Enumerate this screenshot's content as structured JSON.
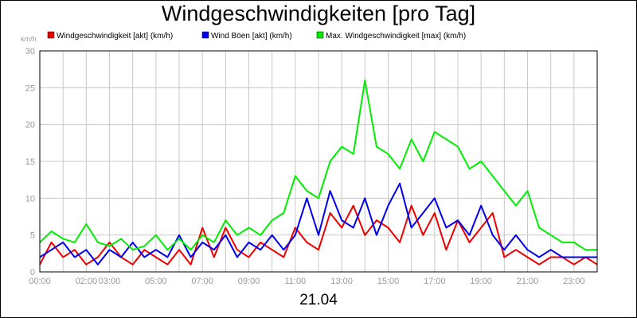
{
  "title": "Windgeschwindigkeiten [pro Tag]",
  "date_label": "21.04",
  "chart_data": {
    "type": "line",
    "title": "Windgeschwindigkeiten [pro Tag]",
    "ylabel": "km/h",
    "xlabel": "21.04",
    "ylim": [
      0,
      30
    ],
    "y_ticks": [
      0,
      5,
      10,
      15,
      20,
      25,
      30
    ],
    "x_ticks": [
      "00:00",
      "02:00",
      "03:00",
      "05:00",
      "07:00",
      "09:00",
      "11:00",
      "13:00",
      "15:00",
      "17:00",
      "19:00",
      "21:00",
      "23:00"
    ],
    "grid": true,
    "legend_position": "top",
    "series": [
      {
        "name": "Windgeschwindigkeit [akt] (km/h)",
        "color": "#ee0000",
        "points": [
          [
            0,
            1
          ],
          [
            0.5,
            4
          ],
          [
            1,
            2
          ],
          [
            1.5,
            3
          ],
          [
            2,
            1
          ],
          [
            2.5,
            2
          ],
          [
            3,
            4
          ],
          [
            3.5,
            2
          ],
          [
            4,
            1
          ],
          [
            4.5,
            3
          ],
          [
            5,
            2
          ],
          [
            5.5,
            1
          ],
          [
            6,
            3
          ],
          [
            6.5,
            1
          ],
          [
            7,
            6
          ],
          [
            7.5,
            2
          ],
          [
            8,
            6
          ],
          [
            8.5,
            3
          ],
          [
            9,
            2
          ],
          [
            9.5,
            4
          ],
          [
            10,
            3
          ],
          [
            10.5,
            2
          ],
          [
            11,
            6
          ],
          [
            11.5,
            4
          ],
          [
            12,
            3
          ],
          [
            12.5,
            8
          ],
          [
            13,
            6
          ],
          [
            13.5,
            9
          ],
          [
            14,
            5
          ],
          [
            14.5,
            7
          ],
          [
            15,
            6
          ],
          [
            15.5,
            4
          ],
          [
            16,
            9
          ],
          [
            16.5,
            5
          ],
          [
            17,
            8
          ],
          [
            17.5,
            3
          ],
          [
            18,
            7
          ],
          [
            18.5,
            4
          ],
          [
            19,
            6
          ],
          [
            19.5,
            8
          ],
          [
            20,
            2
          ],
          [
            20.5,
            3
          ],
          [
            21,
            2
          ],
          [
            21.5,
            1
          ],
          [
            22,
            2
          ],
          [
            22.5,
            2
          ],
          [
            23,
            1
          ],
          [
            23.5,
            2
          ],
          [
            24,
            1
          ]
        ]
      },
      {
        "name": "Wind Böen [akt] (km/h)",
        "color": "#0000ee",
        "points": [
          [
            0,
            2
          ],
          [
            0.5,
            3
          ],
          [
            1,
            4
          ],
          [
            1.5,
            2
          ],
          [
            2,
            3
          ],
          [
            2.5,
            1
          ],
          [
            3,
            3
          ],
          [
            3.5,
            2
          ],
          [
            4,
            4
          ],
          [
            4.5,
            2
          ],
          [
            5,
            3
          ],
          [
            5.5,
            2
          ],
          [
            6,
            5
          ],
          [
            6.5,
            2
          ],
          [
            7,
            4
          ],
          [
            7.5,
            3
          ],
          [
            8,
            5
          ],
          [
            8.5,
            2
          ],
          [
            9,
            4
          ],
          [
            9.5,
            3
          ],
          [
            10,
            5
          ],
          [
            10.5,
            3
          ],
          [
            11,
            5
          ],
          [
            11.5,
            10
          ],
          [
            12,
            5
          ],
          [
            12.5,
            11
          ],
          [
            13,
            7
          ],
          [
            13.5,
            6
          ],
          [
            14,
            10
          ],
          [
            14.5,
            5
          ],
          [
            15,
            9
          ],
          [
            15.5,
            12
          ],
          [
            16,
            6
          ],
          [
            16.5,
            8
          ],
          [
            17,
            10
          ],
          [
            17.5,
            6
          ],
          [
            18,
            7
          ],
          [
            18.5,
            5
          ],
          [
            19,
            9
          ],
          [
            19.5,
            5
          ],
          [
            20,
            3
          ],
          [
            20.5,
            5
          ],
          [
            21,
            3
          ],
          [
            21.5,
            2
          ],
          [
            22,
            3
          ],
          [
            22.5,
            2
          ],
          [
            23,
            2
          ],
          [
            23.5,
            2
          ],
          [
            24,
            2
          ]
        ]
      },
      {
        "name": "Max. Windgeschwindigkeit [max] (km/h)",
        "color": "#00ee00",
        "points": [
          [
            0,
            4
          ],
          [
            0.5,
            5.5
          ],
          [
            1,
            4.5
          ],
          [
            1.5,
            4
          ],
          [
            2,
            6.5
          ],
          [
            2.5,
            4
          ],
          [
            3,
            3.5
          ],
          [
            3.5,
            4.5
          ],
          [
            4,
            3
          ],
          [
            4.5,
            3.5
          ],
          [
            5,
            5
          ],
          [
            5.5,
            3
          ],
          [
            6,
            4.5
          ],
          [
            6.5,
            3
          ],
          [
            7,
            5
          ],
          [
            7.5,
            4
          ],
          [
            8,
            7
          ],
          [
            8.5,
            5
          ],
          [
            9,
            6
          ],
          [
            9.5,
            5
          ],
          [
            10,
            7
          ],
          [
            10.5,
            8
          ],
          [
            11,
            13
          ],
          [
            11.5,
            11
          ],
          [
            12,
            10
          ],
          [
            12.5,
            15
          ],
          [
            13,
            17
          ],
          [
            13.5,
            16
          ],
          [
            14,
            26
          ],
          [
            14.5,
            17
          ],
          [
            15,
            16
          ],
          [
            15.5,
            14
          ],
          [
            16,
            18
          ],
          [
            16.5,
            15
          ],
          [
            17,
            19
          ],
          [
            17.5,
            18
          ],
          [
            18,
            17
          ],
          [
            18.5,
            14
          ],
          [
            19,
            15
          ],
          [
            19.5,
            13
          ],
          [
            20,
            11
          ],
          [
            20.5,
            9
          ],
          [
            21,
            11
          ],
          [
            21.5,
            6
          ],
          [
            22,
            5
          ],
          [
            22.5,
            4
          ],
          [
            23,
            4
          ],
          [
            23.5,
            3
          ],
          [
            24,
            3
          ]
        ]
      }
    ]
  }
}
